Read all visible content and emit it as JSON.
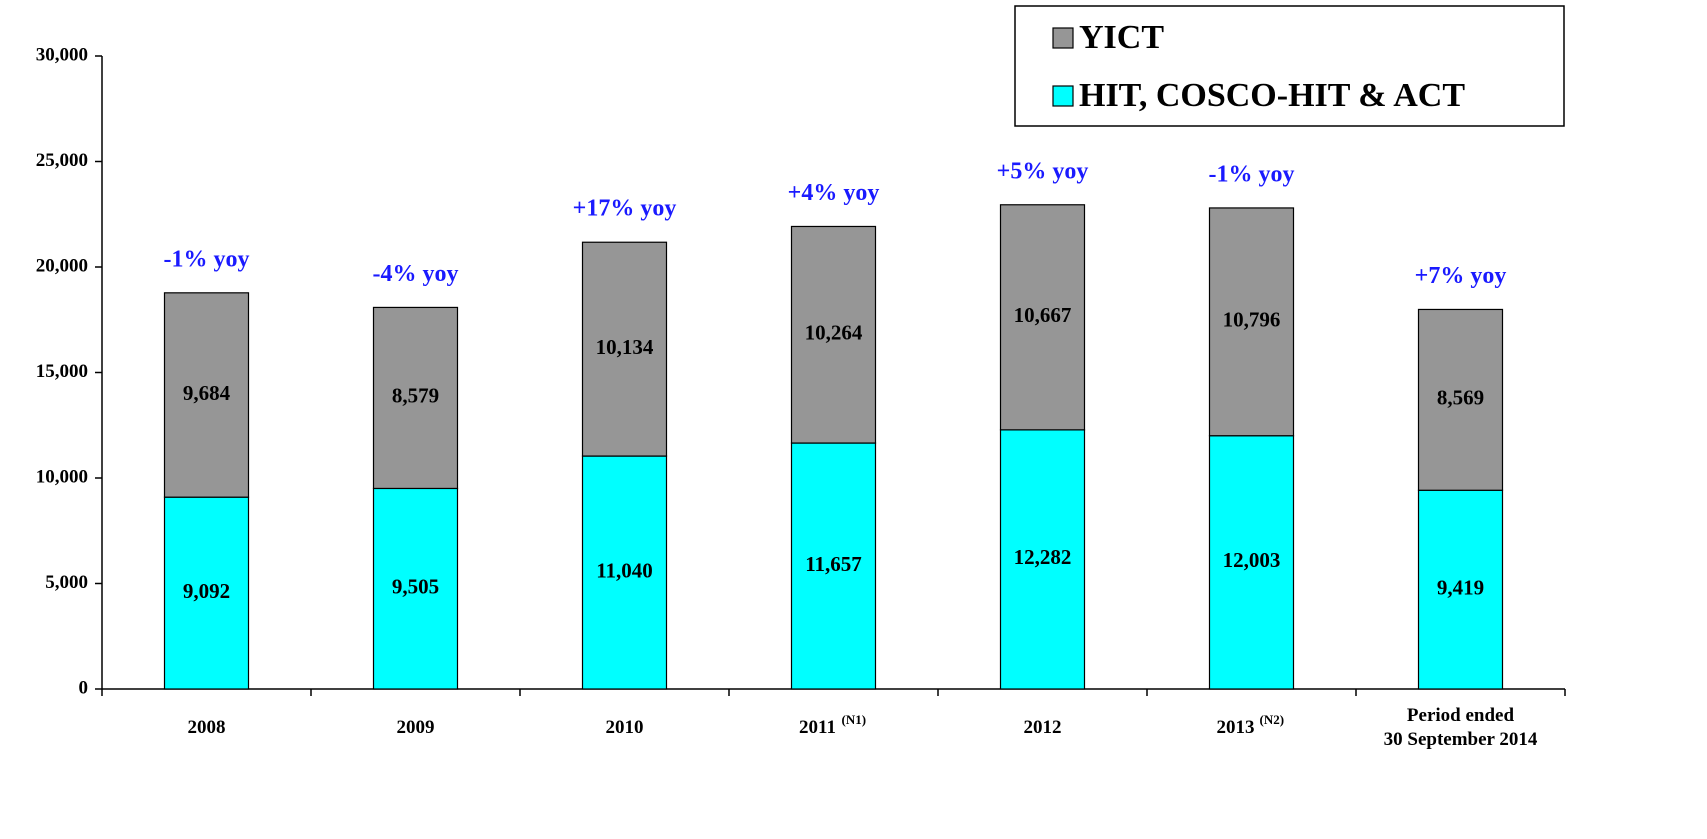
{
  "chart_data": {
    "type": "stacked_bar",
    "categories": [
      "2008",
      "2009",
      "2010",
      "2011",
      "2012",
      "2013",
      "Period ended\n30 September 2014"
    ],
    "category_notes": [
      null,
      null,
      null,
      "(N1)",
      null,
      "(N2)",
      null
    ],
    "series": [
      {
        "name": "HIT, COSCO-HIT & ACT",
        "color": "#00ffff",
        "values": [
          9092,
          9505,
          11040,
          11657,
          12282,
          12003,
          9419
        ],
        "value_labels": [
          "9,092",
          "9,505",
          "11,040",
          "11,657",
          "12,282",
          "12,003",
          "9,419"
        ]
      },
      {
        "name": "YICT",
        "color": "#969696",
        "values": [
          9684,
          8579,
          10134,
          10264,
          10667,
          10796,
          8569
        ],
        "value_labels": [
          "9,684",
          "8,579",
          "10,134",
          "10,264",
          "10,667",
          "10,796",
          "8,569"
        ]
      }
    ],
    "annotations": [
      "-1% yoy",
      "-4% yoy",
      "+17% yoy",
      "+4% yoy",
      "+5% yoy",
      "-1% yoy",
      "+7% yoy"
    ],
    "ylim": [
      0,
      30000
    ],
    "yticks": [
      0,
      {
        "value": 5000,
        "label": "5,000"
      },
      {
        "value": 10000,
        "label": "10,000"
      },
      {
        "value": 15000,
        "label": "15,000"
      },
      {
        "value": 20000,
        "label": "20,000"
      },
      {
        "value": 25000,
        "label": "25,000"
      },
      {
        "value": 30000,
        "label": "30,000"
      }
    ],
    "legend": "top-right"
  }
}
